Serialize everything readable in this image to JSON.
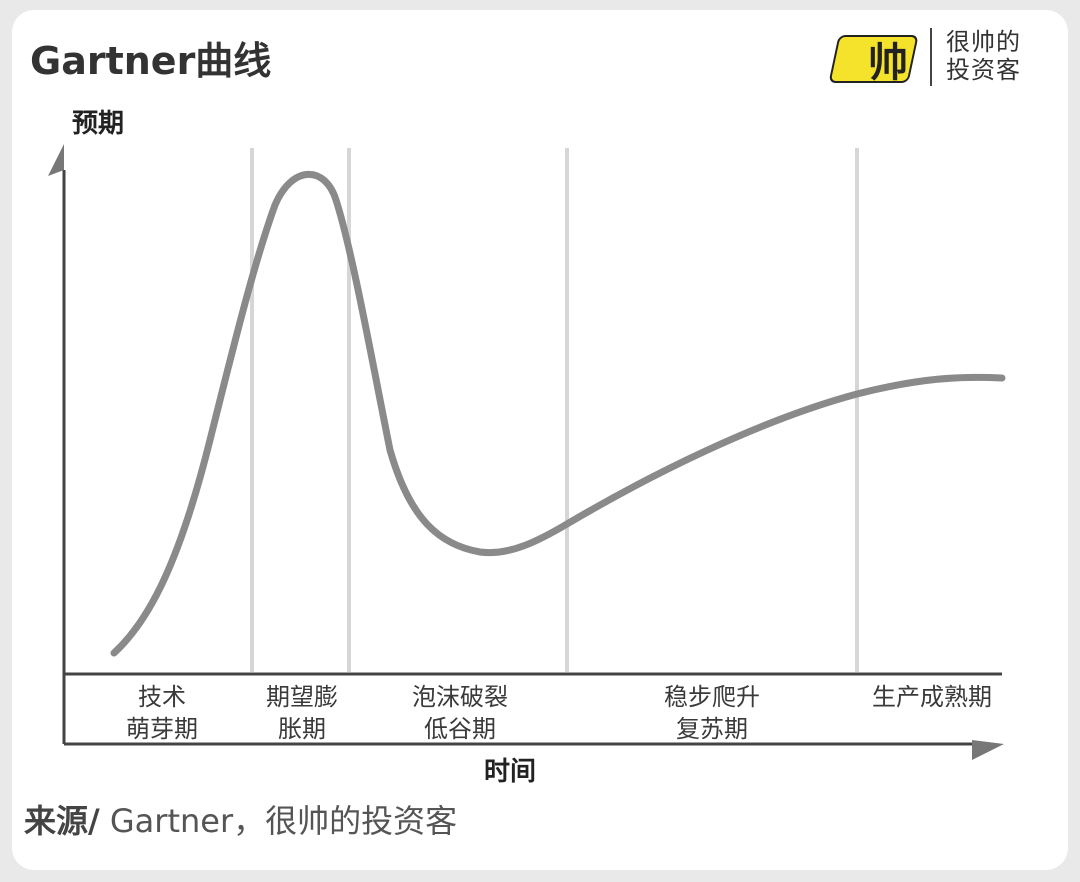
{
  "title": "Gartner曲线",
  "brand": {
    "logo_text": "帅",
    "line1": "很帅的",
    "line2": "投资客",
    "logo_color": "#f5e22a"
  },
  "axes": {
    "y_label": "预期",
    "x_label": "时间"
  },
  "phases": [
    {
      "lines": [
        "技术",
        "萌芽期"
      ]
    },
    {
      "lines": [
        "期望膨",
        "胀期"
      ]
    },
    {
      "lines": [
        "泡沫破裂",
        "低谷期"
      ]
    },
    {
      "lines": [
        "稳步爬升",
        "复苏期"
      ]
    },
    {
      "lines": [
        "生产成熟期"
      ]
    }
  ],
  "source": {
    "label": "来源/",
    "text": " Gartner，很帅的投资客"
  },
  "colors": {
    "curve": "#8a8a8a",
    "dividers": "#d6d6d6",
    "axis": "#444444"
  }
}
